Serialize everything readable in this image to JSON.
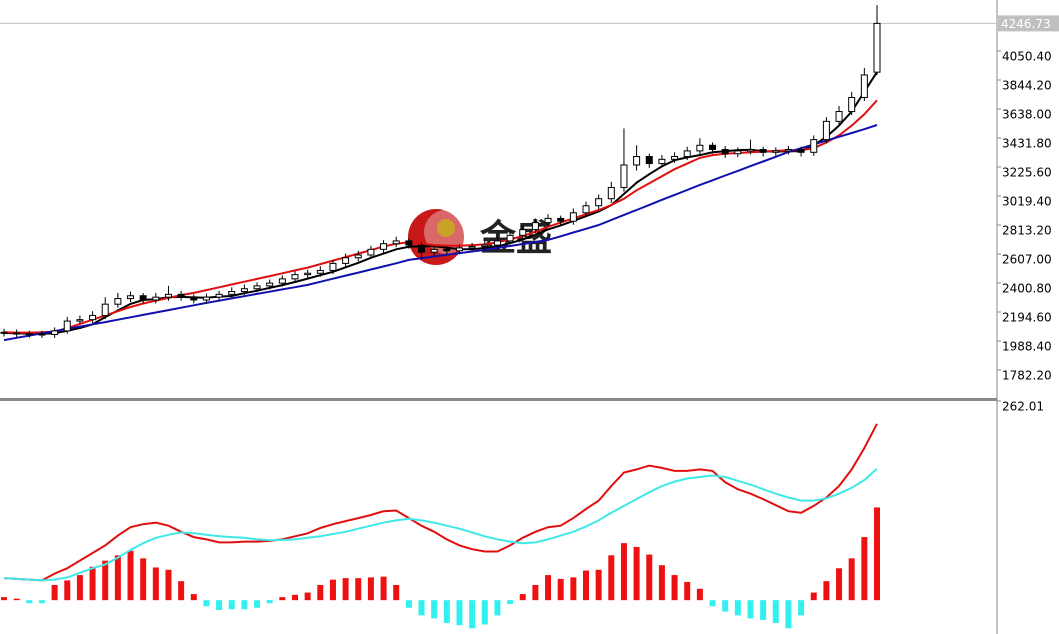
{
  "watermark": "金盛",
  "chart_data": [
    {
      "type": "candlestick",
      "up_color": "#ffffff",
      "down_color": "#000000",
      "ylim": [
        1583,
        4413
      ],
      "yticks": [
        {
          "value": 1782.2,
          "label": "1782.20"
        },
        {
          "value": 1988.4,
          "label": "1988.40"
        },
        {
          "value": 2194.6,
          "label": "2194.60"
        },
        {
          "value": 2400.8,
          "label": "2400.80"
        },
        {
          "value": 2607.0,
          "label": "2607.00"
        },
        {
          "value": 2813.2,
          "label": "2813.20"
        },
        {
          "value": 3019.4,
          "label": "3019.40"
        },
        {
          "value": 3225.6,
          "label": "3225.60"
        },
        {
          "value": 3431.8,
          "label": "3431.80"
        },
        {
          "value": 3638.0,
          "label": "3638.00"
        },
        {
          "value": 3844.2,
          "label": "3844.20"
        },
        {
          "value": 4050.4,
          "label": "4050.40"
        }
      ],
      "current_price": 4246.73,
      "open": [
        2050,
        2045,
        2040,
        2038,
        2035,
        2060,
        2130,
        2140,
        2170,
        2250,
        2290,
        2310,
        2280,
        2300,
        2320,
        2300,
        2280,
        2300,
        2320,
        2340,
        2360,
        2380,
        2400,
        2430,
        2460,
        2470,
        2490,
        2540,
        2580,
        2600,
        2640,
        2680,
        2700,
        2670,
        2620,
        2640,
        2630,
        2650,
        2660,
        2670,
        2700,
        2740,
        2780,
        2830,
        2860,
        2840,
        2900,
        2950,
        3000,
        3080,
        3240,
        3300,
        3250,
        3280,
        3300,
        3340,
        3380,
        3350,
        3320,
        3340,
        3350,
        3330,
        3340,
        3350,
        3330,
        3420,
        3550,
        3620,
        3720,
        3900
      ],
      "high": [
        2075,
        2070,
        2062,
        2060,
        2085,
        2160,
        2170,
        2200,
        2300,
        2330,
        2340,
        2330,
        2330,
        2380,
        2345,
        2320,
        2325,
        2345,
        2370,
        2390,
        2405,
        2425,
        2455,
        2485,
        2495,
        2520,
        2565,
        2610,
        2630,
        2665,
        2705,
        2730,
        2720,
        2690,
        2665,
        2660,
        2675,
        2685,
        2700,
        2730,
        2770,
        2810,
        2860,
        2890,
        2880,
        2930,
        2980,
        3030,
        3120,
        3500,
        3380,
        3320,
        3310,
        3330,
        3370,
        3430,
        3400,
        3375,
        3365,
        3420,
        3370,
        3365,
        3375,
        3370,
        3450,
        3580,
        3660,
        3760,
        3930,
        4377
      ],
      "low": [
        2020,
        2015,
        2012,
        2010,
        2010,
        2040,
        2110,
        2115,
        2145,
        2225,
        2265,
        2255,
        2255,
        2275,
        2275,
        2255,
        2255,
        2275,
        2295,
        2315,
        2335,
        2355,
        2375,
        2405,
        2435,
        2445,
        2465,
        2515,
        2555,
        2575,
        2615,
        2655,
        2645,
        2580,
        2595,
        2605,
        2605,
        2625,
        2635,
        2645,
        2675,
        2715,
        2755,
        2805,
        2815,
        2815,
        2875,
        2925,
        2970,
        3050,
        3200,
        3220,
        3225,
        3255,
        3275,
        3315,
        3320,
        3290,
        3295,
        3315,
        3300,
        3305,
        3315,
        3300,
        3305,
        3395,
        3520,
        3595,
        3695,
        3880
      ],
      "close": [
        2045,
        2040,
        2038,
        2035,
        2060,
        2130,
        2140,
        2170,
        2250,
        2290,
        2310,
        2280,
        2300,
        2320,
        2300,
        2280,
        2300,
        2320,
        2340,
        2360,
        2380,
        2400,
        2430,
        2460,
        2470,
        2490,
        2540,
        2580,
        2600,
        2640,
        2680,
        2700,
        2670,
        2620,
        2640,
        2630,
        2650,
        2660,
        2670,
        2700,
        2740,
        2780,
        2830,
        2860,
        2840,
        2900,
        2950,
        3000,
        3080,
        3240,
        3300,
        3250,
        3280,
        3300,
        3340,
        3380,
        3350,
        3320,
        3340,
        3350,
        3330,
        3340,
        3350,
        3330,
        3420,
        3550,
        3620,
        3720,
        3880,
        4246.73
      ],
      "series": [
        {
          "color": "#000000",
          "values": [
            2045,
            2043,
            2041,
            2040,
            2044,
            2061,
            2081,
            2107,
            2158,
            2206,
            2252,
            2280,
            2286,
            2300,
            2302,
            2298,
            2296,
            2304,
            2308,
            2328,
            2346,
            2366,
            2386,
            2408,
            2432,
            2456,
            2480,
            2512,
            2544,
            2580,
            2610,
            2640,
            2658,
            2662,
            2662,
            2652,
            2642,
            2640,
            2650,
            2662,
            2684,
            2710,
            2744,
            2782,
            2810,
            2842,
            2876,
            2910,
            2954,
            3034,
            3114,
            3174,
            3230,
            3274,
            3294,
            3310,
            3330,
            3338,
            3346,
            3348,
            3338,
            3336,
            3338,
            3338,
            3380,
            3440,
            3520,
            3620,
            3760,
            3900
          ]
        },
        {
          "color": "#e01010",
          "values": [
            2050,
            2048,
            2048,
            2050,
            2055,
            2080,
            2110,
            2140,
            2170,
            2200,
            2230,
            2255,
            2275,
            2295,
            2315,
            2330,
            2350,
            2370,
            2390,
            2410,
            2430,
            2450,
            2470,
            2490,
            2510,
            2535,
            2560,
            2585,
            2610,
            2635,
            2660,
            2680,
            2690,
            2680,
            2670,
            2665,
            2665,
            2670,
            2675,
            2690,
            2710,
            2735,
            2765,
            2800,
            2830,
            2860,
            2890,
            2920,
            2955,
            3000,
            3060,
            3110,
            3160,
            3210,
            3250,
            3290,
            3310,
            3320,
            3325,
            3330,
            3335,
            3340,
            3345,
            3345,
            3360,
            3400,
            3450,
            3520,
            3600,
            3700
          ]
        },
        {
          "color": "#1010b0",
          "values": [
            1995,
            2011,
            2027,
            2043,
            2059,
            2075,
            2091,
            2107,
            2123,
            2140,
            2157,
            2174,
            2191,
            2208,
            2225,
            2242,
            2259,
            2275,
            2291,
            2307,
            2323,
            2339,
            2355,
            2371,
            2387,
            2409,
            2431,
            2453,
            2475,
            2497,
            2519,
            2541,
            2565,
            2577,
            2589,
            2601,
            2613,
            2625,
            2636,
            2650,
            2664,
            2678,
            2692,
            2707,
            2733,
            2760,
            2786,
            2813,
            2849,
            2885,
            2920,
            2956,
            2992,
            3027,
            3062,
            3098,
            3131,
            3165,
            3198,
            3232,
            3265,
            3298,
            3332,
            3359,
            3386,
            3413,
            3440,
            3467,
            3494,
            3524
          ]
        }
      ]
    },
    {
      "type": "macd",
      "ylim": [
        -44.5,
        262.01
      ],
      "yticks": [
        262.01
      ],
      "positive_color": "#ee1111",
      "negative_color": "#33f0f0",
      "histogram": [
        4,
        2,
        -4,
        -4,
        20,
        26,
        33,
        44,
        52,
        59,
        65,
        55,
        43,
        40,
        25,
        8,
        -8,
        -13,
        -12,
        -12,
        -10,
        -4,
        4,
        7,
        10,
        20,
        27,
        29,
        29,
        30,
        31,
        20,
        -10,
        -20,
        -24,
        -30,
        -33,
        -37,
        -32,
        -20,
        -5,
        8,
        20,
        33,
        28,
        30,
        39,
        40,
        59,
        75,
        70,
        60,
        46,
        33,
        24,
        15,
        -8,
        -15,
        -20,
        -24,
        -26,
        -30,
        -37,
        -20,
        10,
        25,
        42,
        55,
        83,
        122
      ],
      "series": [
        {
          "color": "#e01010",
          "values": [
            29,
            28,
            27,
            26,
            35,
            42,
            52,
            62,
            72,
            85,
            96,
            100,
            102,
            98,
            90,
            83,
            80,
            76,
            76,
            77,
            77,
            78,
            80,
            84,
            88,
            95,
            100,
            104,
            108,
            112,
            117,
            118,
            108,
            98,
            90,
            80,
            72,
            67,
            64,
            64,
            72,
            82,
            90,
            96,
            98,
            108,
            120,
            131,
            150,
            168,
            172,
            177,
            174,
            170,
            170,
            172,
            170,
            155,
            146,
            140,
            133,
            125,
            117,
            115,
            124,
            135,
            150,
            172,
            200,
            232
          ]
        },
        {
          "color": "#40e8e8",
          "values": [
            29,
            28,
            27,
            26,
            27,
            30,
            36,
            42,
            47,
            56,
            66,
            75,
            82,
            86,
            89,
            88,
            86,
            84,
            83,
            82,
            80,
            79,
            79,
            80,
            82,
            84,
            87,
            90,
            94,
            98,
            102,
            105,
            107,
            105,
            102,
            98,
            94,
            89,
            84,
            80,
            77,
            75,
            76,
            80,
            85,
            90,
            97,
            105,
            115,
            124,
            133,
            142,
            150,
            156,
            160,
            162,
            164,
            162,
            157,
            152,
            146,
            140,
            135,
            131,
            131,
            134,
            140,
            148,
            158,
            173
          ]
        }
      ]
    }
  ]
}
